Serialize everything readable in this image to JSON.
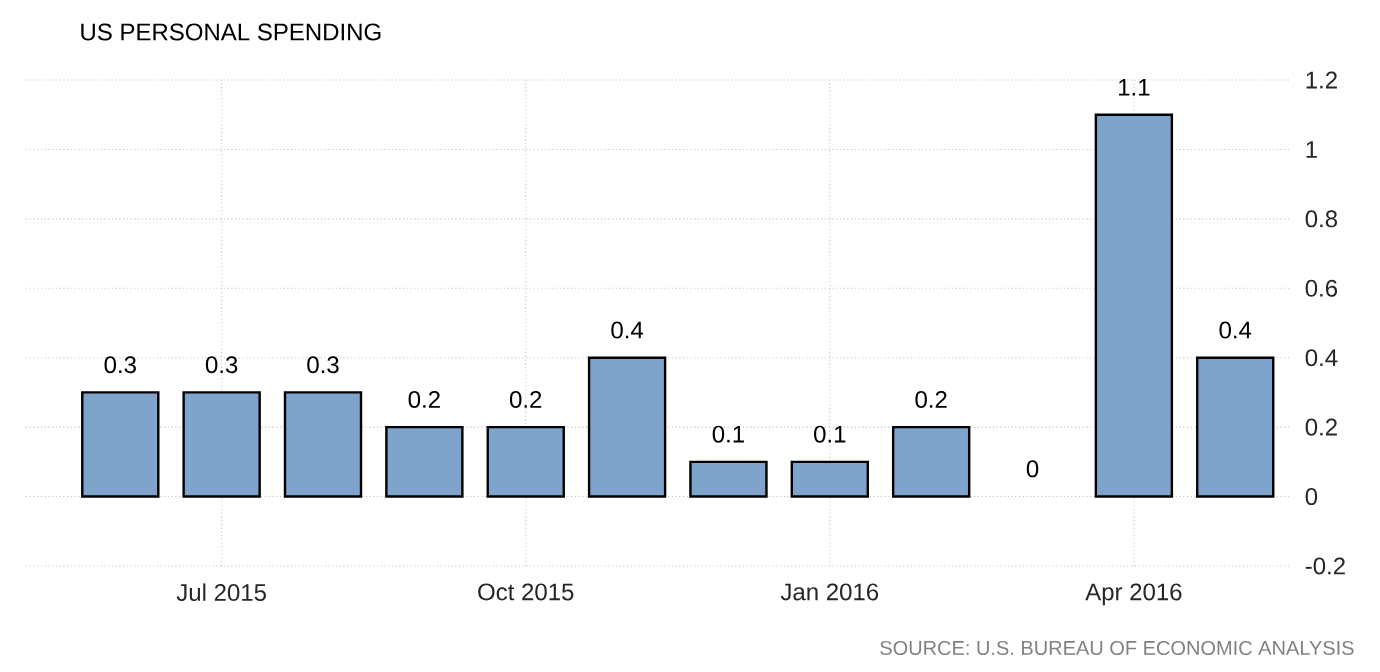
{
  "chart_data": {
    "type": "bar",
    "title": "US PERSONAL SPENDING",
    "categories": [
      null,
      "Jul 2015",
      null,
      null,
      "Oct 2015",
      null,
      null,
      "Jan 2016",
      null,
      null,
      "Apr 2016",
      null
    ],
    "values": [
      0.3,
      0.3,
      0.3,
      0.2,
      0.2,
      0.4,
      0.1,
      0.1,
      0.2,
      0,
      1.1,
      0.4
    ],
    "color": "#7ea4cb",
    "ylim": [
      -0.2,
      1.2
    ],
    "yticks": [
      -0.2,
      0,
      0.2,
      0.4,
      0.6,
      0.8,
      1,
      1.2
    ],
    "grid": true,
    "data_labels": true,
    "annotations": [
      "SOURCE: U.S. BUREAU OF ECONOMIC ANALYSIS"
    ]
  }
}
